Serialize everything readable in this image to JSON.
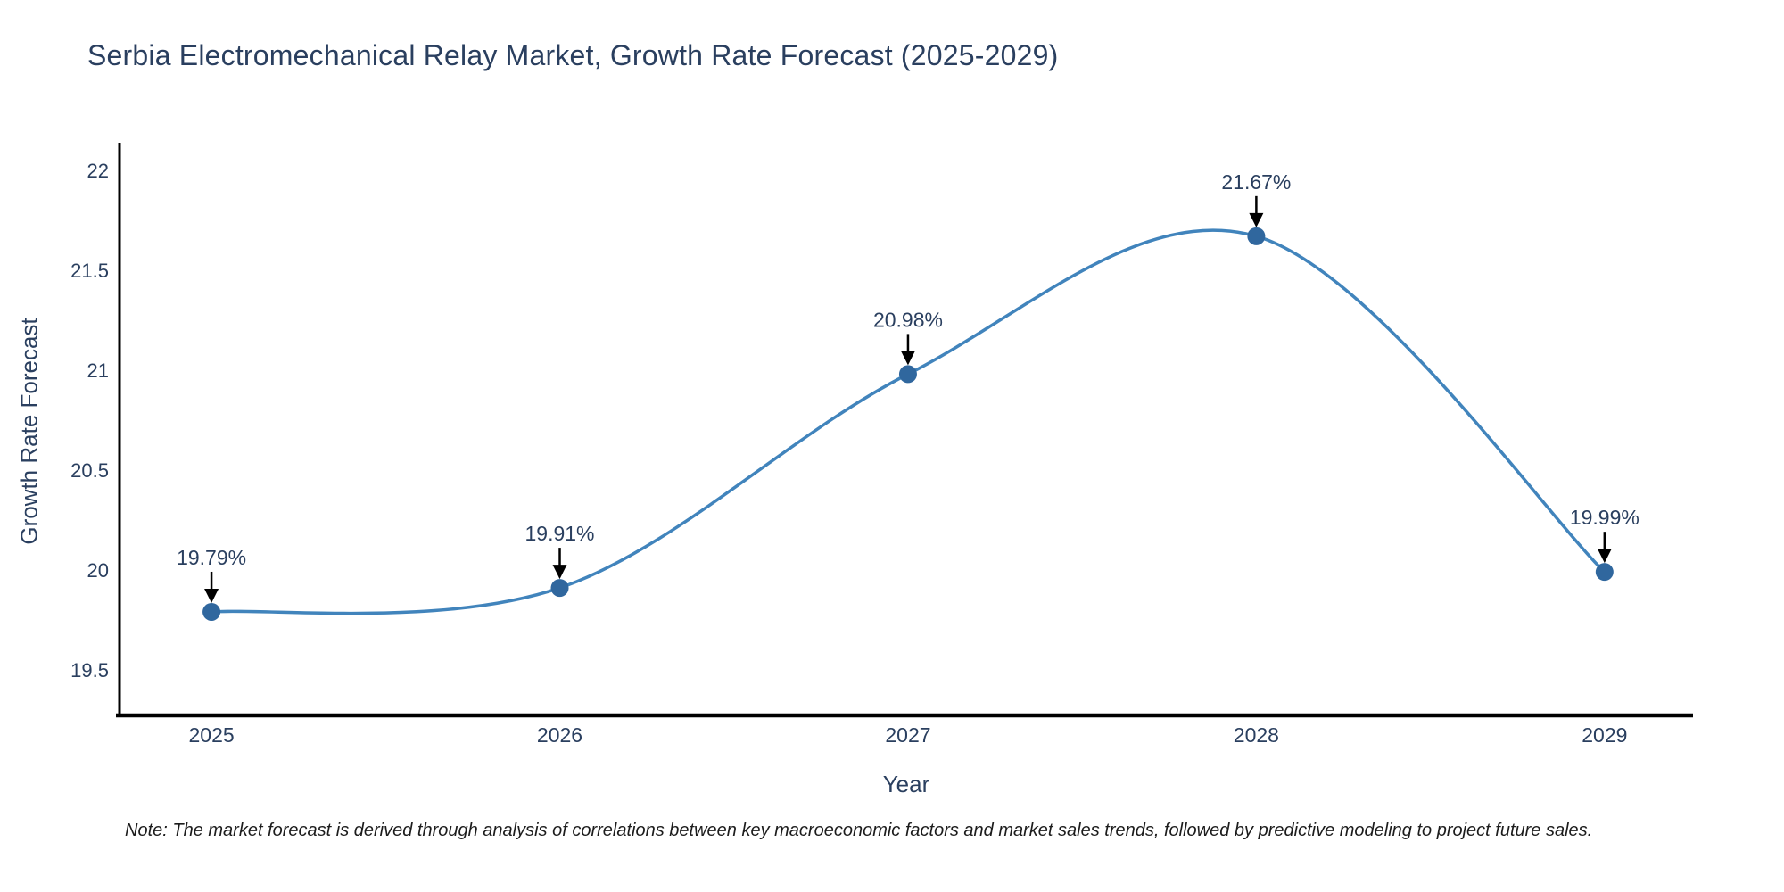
{
  "title": "Serbia Electromechanical Relay Market, Growth Rate Forecast (2025-2029)",
  "note": "Note: The market forecast is derived through analysis of correlations between key macroeconomic factors and market sales trends, followed by predictive modeling to project future sales.",
  "chart_data": {
    "type": "line",
    "title": "Serbia Electromechanical Relay Market, Growth Rate Forecast (2025-2029)",
    "xlabel": "Year",
    "ylabel": "Growth Rate Forecast",
    "x": [
      2025,
      2026,
      2027,
      2028,
      2029
    ],
    "y": [
      19.79,
      19.91,
      20.98,
      21.67,
      19.99
    ],
    "point_labels": [
      "19.79%",
      "19.91%",
      "20.98%",
      "21.67%",
      "19.99%"
    ],
    "xtick_labels": [
      "2025",
      "2026",
      "2027",
      "2028",
      "2029"
    ],
    "yticks": [
      19.5,
      20,
      20.5,
      21,
      21.5,
      22
    ],
    "ytick_labels": [
      "19.5",
      "20",
      "20.5",
      "21",
      "21.5",
      "22"
    ],
    "xlim": [
      2024.736,
      2029.254
    ],
    "ylim": [
      19.272,
      22.138
    ],
    "grid": false,
    "legend": "none",
    "line_shape": "spline",
    "colors": {
      "line": "#4184bc",
      "marker": "#30679e",
      "axis": "#000000",
      "text": "#2a3f5f",
      "annotation_arrow": "#000000"
    }
  }
}
